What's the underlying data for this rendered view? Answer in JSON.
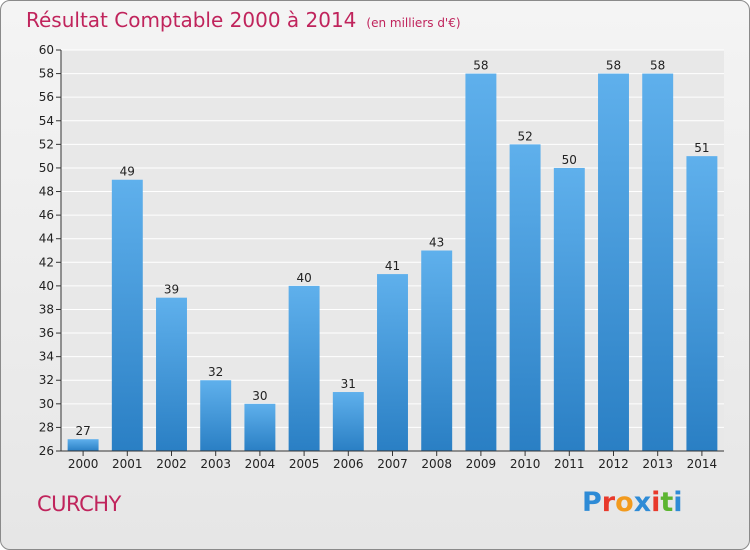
{
  "header": {
    "title": "Résultat Comptable 2000 à 2014",
    "subtitle": "(en milliers d'€)"
  },
  "footer": {
    "town": "CURCHY",
    "logo_letters": [
      "P",
      "r",
      "o",
      "x",
      "i",
      "t",
      "i"
    ],
    "logo_colors": [
      "#2e8bd6",
      "#e8392b",
      "#f29a1d",
      "#2e8bd6",
      "#e8392b",
      "#5cb531",
      "#2e8bd6"
    ]
  },
  "colors": {
    "bar_top": "#5fb0ec",
    "bar_bottom": "#2a7fc4",
    "title": "#c0245c",
    "grid": "#ffffff"
  },
  "chart_data": {
    "type": "bar",
    "title": "Résultat Comptable 2000 à 2014",
    "subtitle": "(en milliers d'€)",
    "categories": [
      "2000",
      "2001",
      "2002",
      "2003",
      "2004",
      "2005",
      "2006",
      "2007",
      "2008",
      "2009",
      "2010",
      "2011",
      "2012",
      "2013",
      "2014"
    ],
    "values": [
      27,
      49,
      39,
      32,
      30,
      40,
      31,
      41,
      43,
      58,
      52,
      50,
      58,
      58,
      51
    ],
    "ylim": [
      26,
      60
    ],
    "yticks": [
      26,
      28,
      30,
      32,
      34,
      36,
      38,
      40,
      42,
      44,
      46,
      48,
      50,
      52,
      54,
      56,
      58,
      60
    ],
    "grid": true,
    "data_labels": true
  }
}
